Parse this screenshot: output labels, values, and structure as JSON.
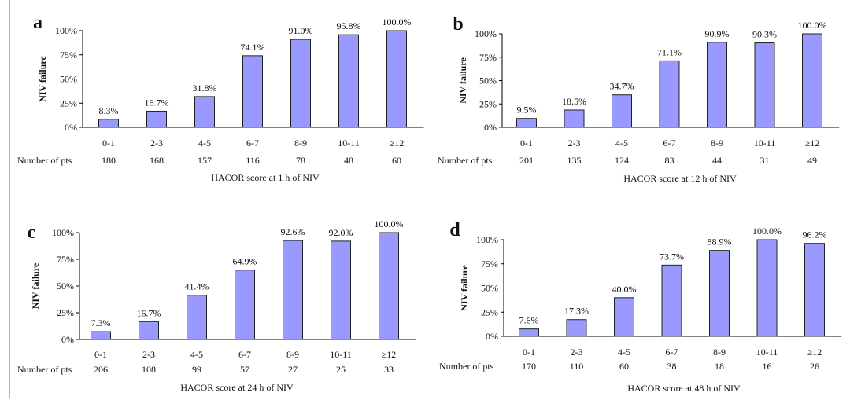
{
  "colors": {
    "bar_fill": "#9999ff",
    "bar_stroke": "#222222",
    "axis": "#000000"
  },
  "chart_data": [
    {
      "type": "bar",
      "panel_label": "a",
      "title": "",
      "ylabel": "NIV failure",
      "xlabel": "HACOR score at 1 h of NIV",
      "ylim": [
        0,
        100
      ],
      "yticks": [
        "0%",
        "25%",
        "50%",
        "75%",
        "100%"
      ],
      "categories": [
        "0-1",
        "2-3",
        "4-5",
        "6-7",
        "8-9",
        "10-11",
        "≥12"
      ],
      "values": [
        8.3,
        16.7,
        31.8,
        74.1,
        91.0,
        95.8,
        100.0
      ],
      "value_labels": [
        "8.3%",
        "16.7%",
        "31.8%",
        "74.1%",
        "91.0%",
        "95.8%",
        "100.0%"
      ],
      "pts_label": "Number of pts",
      "pts": [
        "180",
        "168",
        "157",
        "116",
        "78",
        "48",
        "60"
      ]
    },
    {
      "type": "bar",
      "panel_label": "b",
      "title": "",
      "ylabel": "NIV failure",
      "xlabel": "HACOR score at 12 h of NIV",
      "ylim": [
        0,
        100
      ],
      "yticks": [
        "0%",
        "25%",
        "50%",
        "75%",
        "100%"
      ],
      "categories": [
        "0-1",
        "2-3",
        "4-5",
        "6-7",
        "8-9",
        "10-11",
        "≥12"
      ],
      "values": [
        9.5,
        18.5,
        34.7,
        71.1,
        90.9,
        90.3,
        100.0
      ],
      "value_labels": [
        "9.5%",
        "18.5%",
        "34.7%",
        "71.1%",
        "90.9%",
        "90.3%",
        "100.0%"
      ],
      "pts_label": "Number of pts",
      "pts": [
        "201",
        "135",
        "124",
        "83",
        "44",
        "31",
        "49"
      ]
    },
    {
      "type": "bar",
      "panel_label": "c",
      "title": "",
      "ylabel": "NIV failure",
      "xlabel": "HACOR score at 24 h of NIV",
      "ylim": [
        0,
        100
      ],
      "yticks": [
        "0%",
        "25%",
        "50%",
        "75%",
        "100%"
      ],
      "categories": [
        "0-1",
        "2-3",
        "4-5",
        "6-7",
        "8-9",
        "10-11",
        "≥12"
      ],
      "values": [
        7.3,
        16.7,
        41.4,
        64.9,
        92.6,
        92.0,
        100.0
      ],
      "value_labels": [
        "7.3%",
        "16.7%",
        "41.4%",
        "64.9%",
        "92.6%",
        "92.0%",
        "100.0%"
      ],
      "pts_label": "Number of pts",
      "pts": [
        "206",
        "108",
        "99",
        "57",
        "27",
        "25",
        "33"
      ]
    },
    {
      "type": "bar",
      "panel_label": "d",
      "title": "",
      "ylabel": "NIV failure",
      "xlabel": "HACOR score at 48 h of NIV",
      "ylim": [
        0,
        100
      ],
      "yticks": [
        "0%",
        "25%",
        "50%",
        "75%",
        "100%"
      ],
      "categories": [
        "0-1",
        "2-3",
        "4-5",
        "6-7",
        "8-9",
        "10-11",
        "≥12"
      ],
      "values": [
        7.6,
        17.3,
        40.0,
        73.7,
        88.9,
        100.0,
        96.2
      ],
      "value_labels": [
        "7.6%",
        "17.3%",
        "40.0%",
        "73.7%",
        "88.9%",
        "100.0%",
        "96.2%"
      ],
      "pts_label": "Number of pts",
      "pts": [
        "170",
        "110",
        "60",
        "38",
        "18",
        "16",
        "26"
      ]
    }
  ]
}
